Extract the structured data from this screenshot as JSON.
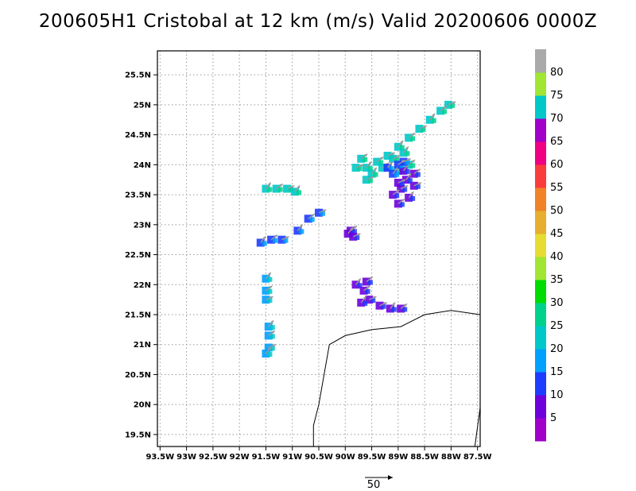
{
  "chart_data": {
    "type": "scatter",
    "title": "200605H1 Cristobal at 12 km (m/s) Valid 20200606 0000Z",
    "x_ticks": [
      "93.5W",
      "93W",
      "92.5W",
      "92W",
      "91.5W",
      "91W",
      "90.5W",
      "90W",
      "89.5W",
      "89W",
      "88.5W",
      "88W",
      "87.5W"
    ],
    "y_ticks": [
      "19.5N",
      "20N",
      "20.5N",
      "21N",
      "21.5N",
      "22N",
      "22.5N",
      "23N",
      "23.5N",
      "24N",
      "24.5N",
      "25N",
      "25.5N"
    ],
    "xlim": [
      -93.55,
      -87.45
    ],
    "ylim": [
      19.3,
      25.9
    ],
    "grid": true,
    "reference_vector": {
      "label": "50",
      "magnitude": 50
    },
    "colorbar": {
      "labels": [
        "5",
        "10",
        "15",
        "20",
        "25",
        "30",
        "35",
        "40",
        "45",
        "50",
        "55",
        "60",
        "65",
        "70",
        "75",
        "80"
      ],
      "colors": [
        "#a000c8",
        "#6e00dc",
        "#1e3cff",
        "#00a0ff",
        "#00c8c8",
        "#00d28c",
        "#00dc00",
        "#a0e632",
        "#e6dc32",
        "#e6af2d",
        "#f08228",
        "#fa3c3c",
        "#f00082",
        "#a000c8",
        "#00c8c8",
        "#a0e632",
        "#aaaaaa"
      ]
    },
    "wind_regions": [
      {
        "name": "main-band",
        "points": [
          [
            -89.6,
            23.95
          ],
          [
            -89.4,
            24.05
          ],
          [
            -89.2,
            24.15
          ],
          [
            -89.0,
            24.3
          ],
          [
            -88.8,
            24.45
          ],
          [
            -88.6,
            24.6
          ],
          [
            -88.4,
            24.75
          ],
          [
            -88.2,
            24.9
          ],
          [
            -88.05,
            25.0
          ],
          [
            -89.5,
            23.85
          ],
          [
            -89.3,
            23.95
          ],
          [
            -89.1,
            24.1
          ],
          [
            -88.9,
            24.2
          ],
          [
            -89.7,
            24.1
          ],
          [
            -89.8,
            23.95
          ],
          [
            -89.0,
            23.9
          ],
          [
            -88.8,
            24.0
          ],
          [
            -89.6,
            23.75
          ]
        ],
        "speed": 20
      },
      {
        "name": "eyewall-east",
        "points": [
          [
            -88.9,
            23.9
          ],
          [
            -88.7,
            23.85
          ],
          [
            -88.7,
            23.65
          ],
          [
            -88.8,
            23.45
          ],
          [
            -89.0,
            23.35
          ],
          [
            -88.95,
            23.6
          ],
          [
            -88.85,
            23.75
          ],
          [
            -89.1,
            23.5
          ],
          [
            -89.0,
            23.7
          ]
        ],
        "speed": 5
      },
      {
        "name": "inner-core",
        "points": [
          [
            -89.2,
            23.95
          ],
          [
            -89.0,
            24.0
          ],
          [
            -88.9,
            24.05
          ],
          [
            -89.1,
            23.85
          ]
        ],
        "speed": 12
      },
      {
        "name": "band-north-23-6",
        "points": [
          [
            -91.5,
            23.6
          ],
          [
            -91.3,
            23.6
          ],
          [
            -91.1,
            23.6
          ],
          [
            -90.95,
            23.55
          ]
        ],
        "speed": 20
      },
      {
        "name": "band-22-7",
        "points": [
          [
            -91.6,
            22.7
          ],
          [
            -91.4,
            22.75
          ],
          [
            -91.2,
            22.75
          ],
          [
            -90.9,
            22.9
          ],
          [
            -90.7,
            23.1
          ],
          [
            -90.5,
            23.2
          ]
        ],
        "speed": 12
      },
      {
        "name": "blob-89-9",
        "points": [
          [
            -89.95,
            22.85
          ],
          [
            -89.9,
            22.9
          ],
          [
            -89.85,
            22.8
          ]
        ],
        "speed": 5
      },
      {
        "name": "south-blob",
        "points": [
          [
            -89.8,
            22.0
          ],
          [
            -89.65,
            21.9
          ],
          [
            -89.55,
            21.75
          ],
          [
            -89.7,
            21.7
          ],
          [
            -89.6,
            22.05
          ],
          [
            -89.35,
            21.65
          ],
          [
            -89.15,
            21.6
          ],
          [
            -88.95,
            21.6
          ]
        ],
        "speed": 5
      },
      {
        "name": "west-strip",
        "points": [
          [
            -91.5,
            22.1
          ],
          [
            -91.5,
            21.9
          ],
          [
            -91.5,
            21.75
          ],
          [
            -91.45,
            21.3
          ],
          [
            -91.45,
            21.15
          ],
          [
            -91.45,
            20.95
          ],
          [
            -91.5,
            20.85
          ]
        ],
        "speed": 15
      }
    ],
    "coastline": [
      [
        -90.6,
        19.3
      ],
      [
        -90.6,
        19.65
      ],
      [
        -90.5,
        20.0
      ],
      [
        -90.3,
        21.0
      ],
      [
        -90.0,
        21.15
      ],
      [
        -89.5,
        21.25
      ],
      [
        -88.95,
        21.3
      ],
      [
        -88.5,
        21.5
      ],
      [
        -88.0,
        21.57
      ],
      [
        -87.45,
        21.5
      ]
    ],
    "coastline2": [
      [
        -87.55,
        19.3
      ],
      [
        -87.45,
        19.95
      ]
    ]
  }
}
